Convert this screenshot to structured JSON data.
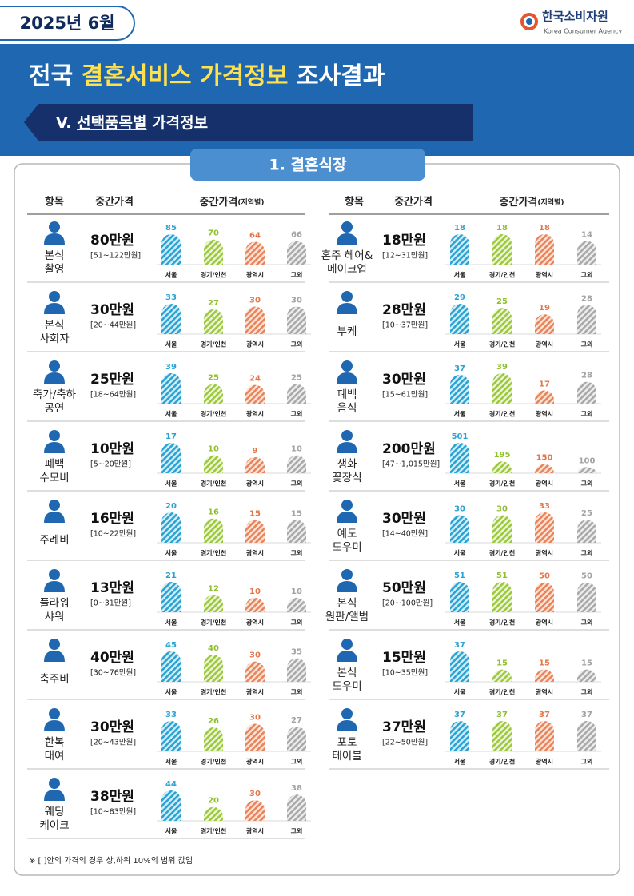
{
  "header": {
    "date": "2025년 6월",
    "org_name": "한국소비자원",
    "org_name_en": "Korea Consumer Agency",
    "title_prefix": "전국",
    "title_highlight": "결혼서비스 가격정보",
    "title_suffix": "조사결과",
    "section_number": "V.",
    "section_underlined": "선택품목별",
    "section_rest": "가격정보"
  },
  "panel_title": "1. 결혼식장",
  "columns": {
    "item": "항목",
    "median": "중간가격",
    "regional": "중간가격",
    "regional_note": "(지역별)"
  },
  "regions": [
    "서울",
    "경기/인천",
    "광역시",
    "그외"
  ],
  "items": [
    {
      "name": [
        "본식",
        "촬영"
      ],
      "median": "80만원",
      "range": "[51~122만원]",
      "values": [
        85,
        70,
        64,
        66
      ]
    },
    {
      "name": [
        "본식",
        "사회자"
      ],
      "median": "30만원",
      "range": "[20~44만원]",
      "values": [
        33,
        27,
        30,
        30
      ]
    },
    {
      "name": [
        "축가/축하",
        "공연"
      ],
      "median": "25만원",
      "range": "[18~64만원]",
      "values": [
        39,
        25,
        24,
        25
      ]
    },
    {
      "name": [
        "폐백",
        "수모비"
      ],
      "median": "10만원",
      "range": "[5~20만원]",
      "values": [
        17,
        10,
        9,
        10
      ]
    },
    {
      "name": [
        "주례비"
      ],
      "median": "16만원",
      "range": "[10~22만원]",
      "values": [
        20,
        16,
        15,
        15
      ]
    },
    {
      "name": [
        "플라워",
        "샤워"
      ],
      "median": "13만원",
      "range": "[0~31만원]",
      "values": [
        21,
        12,
        10,
        10
      ]
    },
    {
      "name": [
        "축주비"
      ],
      "median": "40만원",
      "range": "[30~76만원]",
      "values": [
        45,
        40,
        30,
        35
      ]
    },
    {
      "name": [
        "한복",
        "대여"
      ],
      "median": "30만원",
      "range": "[20~43만원]",
      "values": [
        33,
        26,
        30,
        27
      ]
    },
    {
      "name": [
        "웨딩",
        "케이크"
      ],
      "median": "38만원",
      "range": "[10~83만원]",
      "values": [
        44,
        20,
        30,
        38
      ]
    },
    {
      "name": [
        "혼주 헤어&",
        "메이크업"
      ],
      "median": "18만원",
      "range": "[12~31만원]",
      "values": [
        18,
        18,
        18,
        14
      ]
    },
    {
      "name": [
        "부케"
      ],
      "median": "28만원",
      "range": "[10~37만원]",
      "values": [
        29,
        25,
        19,
        28
      ]
    },
    {
      "name": [
        "폐백",
        "음식"
      ],
      "median": "30만원",
      "range": "[15~61만원]",
      "values": [
        37,
        39,
        17,
        28
      ]
    },
    {
      "name": [
        "생화",
        "꽃장식"
      ],
      "median": "200만원",
      "range": "[47~1,015만원]",
      "values": [
        501,
        195,
        150,
        100
      ]
    },
    {
      "name": [
        "예도",
        "도우미"
      ],
      "median": "30만원",
      "range": "[14~40만원]",
      "values": [
        30,
        30,
        33,
        25
      ]
    },
    {
      "name": [
        "본식",
        "원판/앨범"
      ],
      "median": "50만원",
      "range": "[20~100만원]",
      "values": [
        51,
        51,
        50,
        50
      ]
    },
    {
      "name": [
        "본식",
        "도우미"
      ],
      "median": "15만원",
      "range": "[10~35만원]",
      "values": [
        37,
        15,
        15,
        15
      ]
    },
    {
      "name": [
        "포토",
        "테이블"
      ],
      "median": "37만원",
      "range": "[22~50만원]",
      "values": [
        37,
        37,
        37,
        37
      ]
    }
  ],
  "footnote": "※ [ ]안의 가격의 경우 상,하위 10%의 범위 값임"
}
